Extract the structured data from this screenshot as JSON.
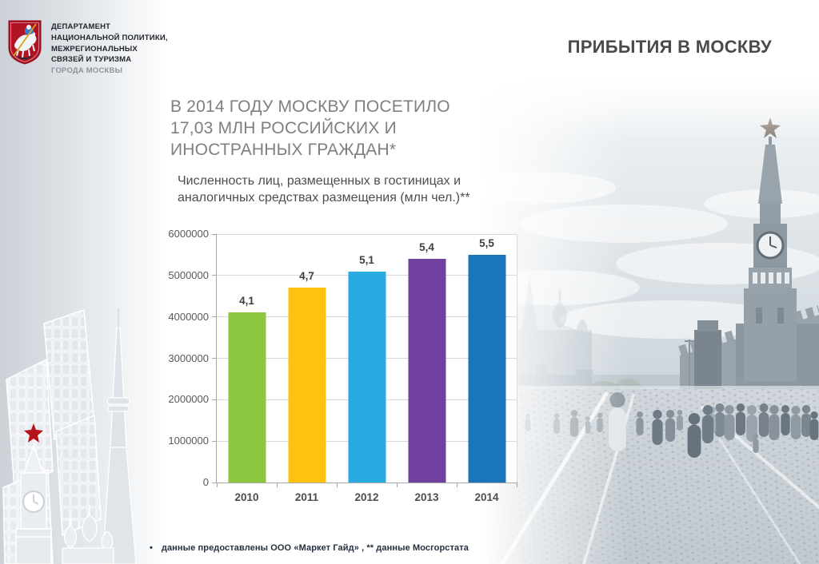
{
  "slide": {
    "header": {
      "department_lines": [
        "ДЕПАРТАМЕНТ",
        "НАЦИОНАЛЬНОЙ ПОЛИТИКИ,",
        "МЕЖРЕГИОНАЛЬНЫХ",
        "СВЯЗЕЙ И ТУРИЗМА"
      ],
      "department_city": "ГОРОДА МОСКВЫ",
      "title": "ПРИБЫТИЯ В МОСКВУ"
    },
    "heading_lines": [
      "В 2014 ГОДУ МОСКВУ ПОСЕТИЛО",
      "17,03 МЛН РОССИЙСКИХ И",
      "ИНОСТРАННЫХ ГРАЖДАН*"
    ],
    "footnote": {
      "bullet": "•",
      "text": "данные предоставлены ООО «Маркет Гайд» ,  ** данные Мосгорстата"
    }
  },
  "chart_data": {
    "type": "bar",
    "title": "Численность лиц, размещенных в гостиницах и аналогичных средствах размещения (млн чел.)**",
    "title_lines": [
      "Численность лиц, размещенных в гостиницах и",
      "аналогичных средствах размещения (млн чел.)**"
    ],
    "categories": [
      "2010",
      "2011",
      "2012",
      "2013",
      "2014"
    ],
    "values": [
      4100000,
      4700000,
      5100000,
      5400000,
      5500000
    ],
    "value_labels": [
      "4,1",
      "4,7",
      "5,1",
      "5,4",
      "5,5"
    ],
    "bar_colors": [
      "#8dc63f",
      "#ffc20e",
      "#29abe2",
      "#7141a1",
      "#1b75bb"
    ],
    "xlabel": "",
    "ylabel": "",
    "ylim": [
      0,
      6000000
    ],
    "ytick_step": 1000000,
    "ytick_labels": [
      "0",
      "1000000",
      "2000000",
      "3000000",
      "4000000",
      "5000000",
      "6000000"
    ],
    "grid": true,
    "legend": "none"
  },
  "colors": {
    "logo_shield_red": "#b01323",
    "red_star": "#b5121b",
    "title_gray": "#4a4a4a",
    "heading_gray": "#7f7f7f",
    "axis_gray": "#a6a6a6",
    "grid_gray": "#d9d9d9"
  }
}
